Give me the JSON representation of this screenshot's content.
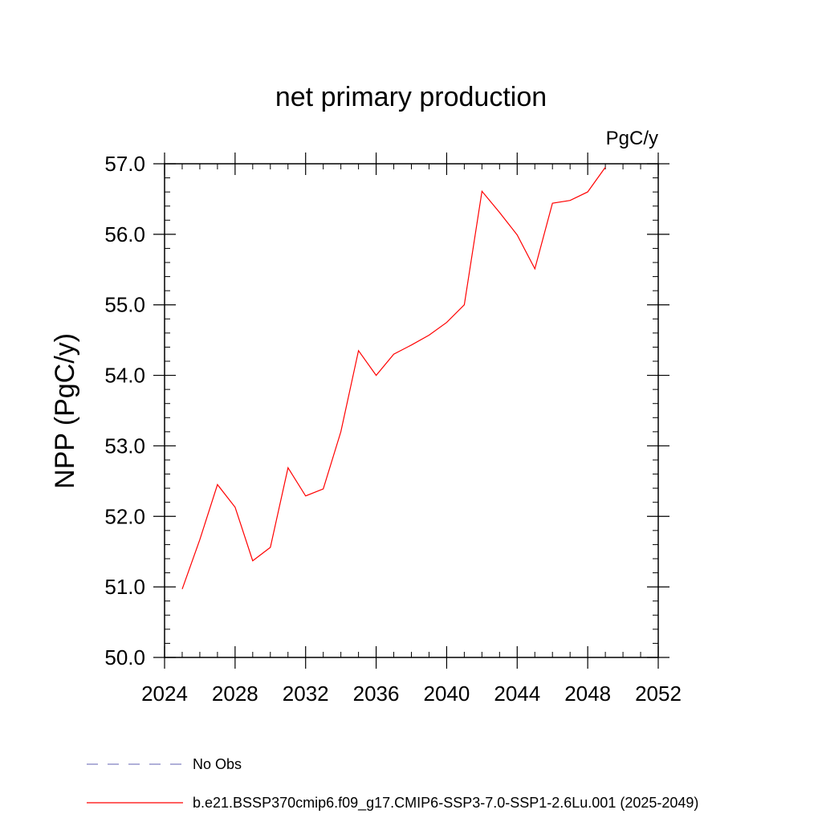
{
  "chart_data": {
    "type": "line",
    "title": "net primary production",
    "units_label": "PgC/y",
    "ylabel": "NPP  (PgC/y)",
    "xlabel": "",
    "xlim": [
      2024,
      2052
    ],
    "ylim": [
      50.0,
      57.0
    ],
    "x_ticks": [
      2024,
      2028,
      2032,
      2036,
      2040,
      2044,
      2048,
      2052
    ],
    "x_tick_labels": [
      "2024",
      "2028",
      "2032",
      "2036",
      "2040",
      "2044",
      "2048",
      "2052"
    ],
    "y_ticks": [
      50,
      51,
      52,
      53,
      54,
      55,
      56,
      57
    ],
    "y_tick_labels": [
      "50.0",
      "51.0",
      "52.0",
      "53.0",
      "54.0",
      "55.0",
      "56.0",
      "57.0"
    ],
    "grid": false,
    "legend_position": "bottom",
    "series": [
      {
        "name": "b.e21.BSSP370cmip6.f09_g17.CMIP6-SSP3-7.0-SSP1-2.6Lu.001 (2025-2049)",
        "color": "#ff0000",
        "style": "solid",
        "x": [
          2025,
          2026,
          2027,
          2028,
          2029,
          2030,
          2031,
          2032,
          2033,
          2034,
          2035,
          2036,
          2037,
          2038,
          2039,
          2040,
          2041,
          2042,
          2043,
          2044,
          2045,
          2046,
          2047,
          2048,
          2049
        ],
        "y": [
          50.97,
          51.67,
          52.45,
          52.13,
          51.37,
          51.56,
          52.69,
          52.29,
          52.39,
          53.2,
          54.35,
          54.0,
          54.3,
          54.43,
          54.57,
          54.75,
          55.0,
          56.61,
          56.31,
          55.99,
          55.51,
          56.44,
          56.48,
          56.6,
          56.95
        ]
      }
    ],
    "legend": [
      {
        "label": "No Obs",
        "color": "#8080c0",
        "style": "dashed"
      },
      {
        "label": "b.e21.BSSP370cmip6.f09_g17.CMIP6-SSP3-7.0-SSP1-2.6Lu.001 (2025-2049)",
        "color": "#ff0000",
        "style": "solid"
      }
    ]
  }
}
